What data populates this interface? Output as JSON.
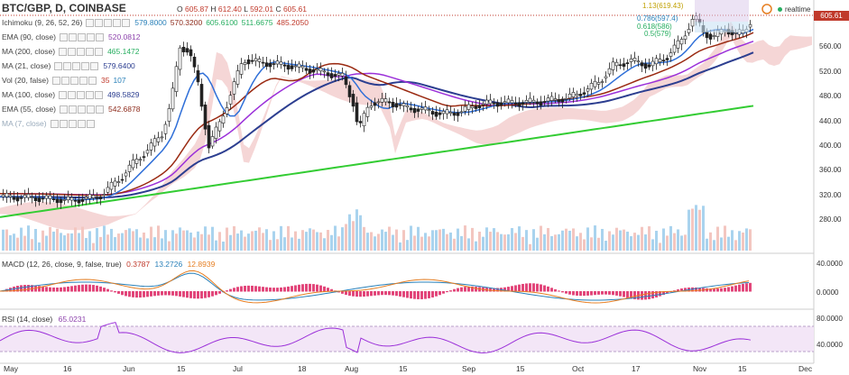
{
  "header": {
    "symbol": "BTC/GBP, D, COINBASE",
    "open_label": "O",
    "open": "605.87",
    "high_label": "H",
    "high": "612.40",
    "low_label": "L",
    "low": "592.01",
    "close_label": "C",
    "close": "605.61",
    "realtime": "realtime"
  },
  "indicators": [
    {
      "name": "Ichimoku (9, 26, 52, 26)",
      "values": [
        "579.8000",
        "570.3200",
        "605.6100",
        "511.6675",
        "485.2050"
      ],
      "colors": [
        "#2980b9",
        "#8e2c1c",
        "#27ae60",
        "#27ae60",
        "#c0392b"
      ]
    },
    {
      "name": "EMA (90, close)",
      "values": [
        "520.0812"
      ],
      "colors": [
        "#8e44ad"
      ]
    },
    {
      "name": "MA (200, close)",
      "values": [
        "465.1472"
      ],
      "colors": [
        "#27ae60"
      ]
    },
    {
      "name": "MA (21, close)",
      "values": [
        "579.6400"
      ],
      "colors": [
        "#2c3e90"
      ]
    },
    {
      "name": "Vol (20, false)",
      "values": [
        "35",
        "107"
      ],
      "colors": [
        "#c0392b",
        "#2980b9"
      ]
    },
    {
      "name": "MA (100, close)",
      "values": [
        "498.5829"
      ],
      "colors": [
        "#2c3e90"
      ]
    },
    {
      "name": "EMA (55, close)",
      "values": [
        "542.6878"
      ],
      "colors": [
        "#8e2c1c"
      ]
    },
    {
      "name": "MA (7, close)",
      "values": [],
      "colors": []
    }
  ],
  "price_axis": {
    "labels": [
      "605.61",
      "560.00",
      "520.00",
      "480.00",
      "440.00",
      "400.00",
      "360.00",
      "320.00",
      "280.00"
    ],
    "current": "605.61"
  },
  "fib_levels": [
    {
      "label": "1.13(619.43)",
      "color": "#c0a000"
    },
    {
      "label": "0.786(597.4)",
      "color": "#2980b9"
    },
    {
      "label": "0.618(586)",
      "color": "#27ae60"
    },
    {
      "label": "0.5(579)",
      "color": "#27ae60"
    }
  ],
  "macd": {
    "name": "MACD (12, 26, close, 9, false, true)",
    "values": [
      "0.3787",
      "13.2726",
      "12.8939"
    ],
    "colors": [
      "#c0392b",
      "#2980b9",
      "#e67e22"
    ],
    "axis": [
      "40.0000",
      "0.0000"
    ]
  },
  "rsi": {
    "name": "RSI (14, close)",
    "value": "65.0231",
    "axis": [
      "80.0000",
      "40.0000"
    ]
  },
  "x_axis": [
    "May",
    "16",
    "Jun",
    "15",
    "Jul",
    "18",
    "Aug",
    "15",
    "Sep",
    "15",
    "Oct",
    "17",
    "Nov",
    "15",
    "Dec"
  ],
  "colors": {
    "up": "#27ae60",
    "down": "#c0392b",
    "ema90": "#9b30d9",
    "ma200": "#33cc33",
    "ma21": "#2f6fd8",
    "ma100": "#2c3e90",
    "ema55": "#9a2a12",
    "kumo_up": "#b8e2b0",
    "kumo_dn": "#f1c4c4"
  }
}
